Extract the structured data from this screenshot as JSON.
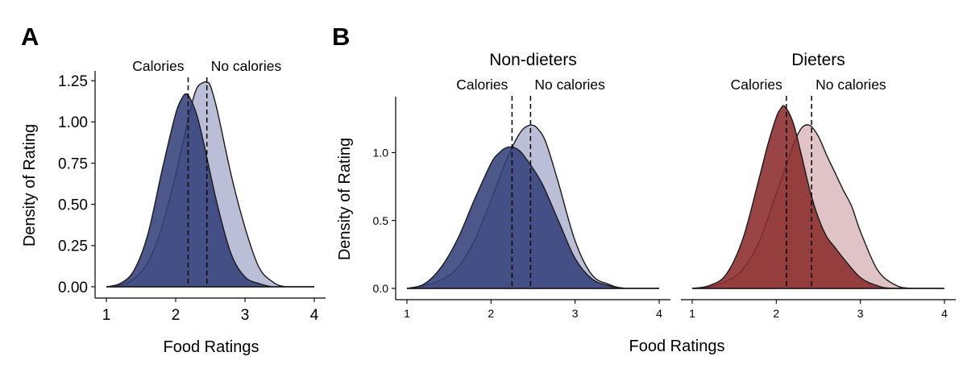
{
  "panels": {
    "a_label": "A",
    "b_label": "B",
    "shared_xlabel": "Food Ratings"
  },
  "chart_data": [
    {
      "id": "A",
      "type": "area",
      "title": "",
      "xlabel": "Food Ratings",
      "ylabel": "Density of Rating",
      "xlim": [
        0.95,
        4.05
      ],
      "ylim": [
        0,
        1.3
      ],
      "xticks": [
        1,
        2,
        3,
        4
      ],
      "yticks": [
        0,
        0.25,
        0.5,
        0.75,
        1.0,
        1.25
      ],
      "ytick_labels": [
        "0.00",
        "0.25",
        "0.50",
        "0.75",
        "1.00",
        "1.25"
      ],
      "series": [
        {
          "name": "No calories",
          "color": "#b4b9d3",
          "mean": 2.45,
          "x": [
            1.0,
            1.2,
            1.4,
            1.6,
            1.8,
            2.0,
            2.2,
            2.3,
            2.4,
            2.45,
            2.5,
            2.6,
            2.8,
            3.0,
            3.2,
            3.4,
            3.6,
            4.0
          ],
          "y": [
            0.0,
            0.01,
            0.05,
            0.15,
            0.36,
            0.68,
            1.05,
            1.2,
            1.24,
            1.24,
            1.22,
            1.07,
            0.68,
            0.36,
            0.12,
            0.03,
            0.0,
            0.0
          ]
        },
        {
          "name": "Calories",
          "color": "#33407a",
          "mean": 2.18,
          "x": [
            1.0,
            1.2,
            1.4,
            1.6,
            1.8,
            2.0,
            2.1,
            2.15,
            2.2,
            2.3,
            2.4,
            2.6,
            2.8,
            3.0,
            3.2,
            3.4,
            3.6,
            4.0
          ],
          "y": [
            0.0,
            0.02,
            0.1,
            0.32,
            0.7,
            1.05,
            1.15,
            1.17,
            1.15,
            1.05,
            0.88,
            0.5,
            0.2,
            0.06,
            0.02,
            0.0,
            0.0,
            0.0
          ]
        }
      ],
      "annotations": [
        {
          "text": "Calories",
          "at": 2.18
        },
        {
          "text": "No calories",
          "at": 2.45
        }
      ]
    },
    {
      "id": "B1",
      "type": "area",
      "title": "Non-dieters",
      "xlabel": "Food Ratings",
      "ylabel": "Density of Rating",
      "xlim": [
        0.95,
        4.05
      ],
      "ylim": [
        0,
        1.4
      ],
      "xticks": [
        1,
        2,
        3,
        4
      ],
      "yticks": [
        0,
        0.5,
        1.0
      ],
      "ytick_labels": [
        "0.0",
        "0.5",
        "1.0"
      ],
      "series": [
        {
          "name": "No calories",
          "color": "#b4b9d3",
          "mean": 2.47,
          "x": [
            1.0,
            1.2,
            1.4,
            1.6,
            1.8,
            2.0,
            2.2,
            2.35,
            2.45,
            2.5,
            2.55,
            2.65,
            2.8,
            3.0,
            3.2,
            3.4,
            3.6,
            4.0
          ],
          "y": [
            0.0,
            0.02,
            0.06,
            0.15,
            0.35,
            0.65,
            0.97,
            1.15,
            1.2,
            1.2,
            1.18,
            1.08,
            0.78,
            0.35,
            0.1,
            0.03,
            0.0,
            0.0
          ]
        },
        {
          "name": "Calories",
          "color": "#33407a",
          "mean": 2.25,
          "x": [
            1.0,
            1.2,
            1.4,
            1.6,
            1.8,
            2.0,
            2.1,
            2.2,
            2.3,
            2.4,
            2.6,
            2.8,
            3.0,
            3.2,
            3.4,
            3.6,
            4.0
          ],
          "y": [
            0.0,
            0.03,
            0.15,
            0.36,
            0.65,
            0.92,
            1.0,
            1.04,
            1.03,
            0.97,
            0.78,
            0.5,
            0.22,
            0.07,
            0.02,
            0.0,
            0.0
          ]
        }
      ],
      "annotations": [
        {
          "text": "Calories",
          "at": 2.25
        },
        {
          "text": "No calories",
          "at": 2.47
        }
      ]
    },
    {
      "id": "B2",
      "type": "area",
      "title": "Dieters",
      "xlabel": "Food Ratings",
      "ylabel": "",
      "xlim": [
        0.95,
        4.05
      ],
      "ylim": [
        0,
        1.4
      ],
      "xticks": [
        1,
        2,
        3,
        4
      ],
      "yticks": [],
      "ytick_labels": [],
      "series": [
        {
          "name": "No calories",
          "color": "#dcbec1",
          "mean": 2.42,
          "x": [
            1.0,
            1.2,
            1.4,
            1.6,
            1.8,
            2.0,
            2.2,
            2.3,
            2.4,
            2.5,
            2.6,
            2.7,
            2.8,
            2.9,
            3.0,
            3.2,
            3.4,
            3.6,
            4.0
          ],
          "y": [
            0.0,
            0.01,
            0.05,
            0.14,
            0.35,
            0.7,
            1.05,
            1.18,
            1.2,
            1.12,
            0.98,
            0.85,
            0.72,
            0.6,
            0.42,
            0.14,
            0.03,
            0.0,
            0.0
          ]
        },
        {
          "name": "Calories",
          "color": "#8b2b2b",
          "mean": 2.12,
          "x": [
            1.0,
            1.2,
            1.4,
            1.6,
            1.8,
            1.9,
            2.0,
            2.05,
            2.1,
            2.2,
            2.3,
            2.4,
            2.5,
            2.6,
            2.7,
            2.8,
            3.0,
            3.2,
            3.4,
            4.0
          ],
          "y": [
            0.0,
            0.02,
            0.1,
            0.36,
            0.82,
            1.06,
            1.26,
            1.32,
            1.34,
            1.22,
            0.98,
            0.72,
            0.52,
            0.38,
            0.3,
            0.22,
            0.08,
            0.02,
            0.0,
            0.0
          ]
        }
      ],
      "annotations": [
        {
          "text": "Calories",
          "at": 2.12
        },
        {
          "text": "No calories",
          "at": 2.42
        }
      ]
    }
  ]
}
